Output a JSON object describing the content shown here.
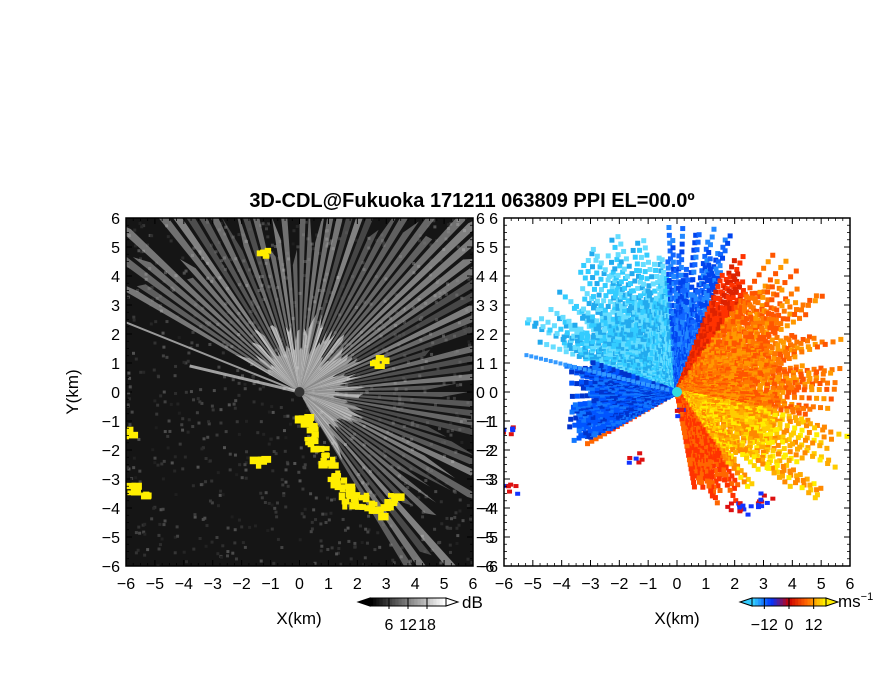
{
  "chart_data": [
    {
      "type": "heatmap",
      "panel": "reflectivity",
      "title": "3D-CDL@Fukuoka 171211 063809 PPI EL=00.0º",
      "xlabel": "X(km)",
      "ylabel": "Y(km)",
      "xlim": [
        -6,
        6
      ],
      "ylim": [
        -6,
        6
      ],
      "xticks": [
        "-6",
        "-5",
        "-4",
        "-3",
        "-2",
        "-1",
        "0",
        "1",
        "2",
        "3",
        "4",
        "5",
        "6"
      ],
      "yticks": [
        "6",
        "5",
        "4",
        "3",
        "2",
        "1",
        "0",
        "-1",
        "-2",
        "-3",
        "-4",
        "-5",
        "-6"
      ],
      "colorbar": {
        "unit": "dB",
        "tick_labels": [
          "6",
          "12",
          "18"
        ],
        "tick_values": [
          6,
          12,
          18
        ],
        "range": [
          0,
          24
        ],
        "colors": [
          "#000000",
          "#ffffff"
        ]
      },
      "overlay_color": "#ffee00"
    },
    {
      "type": "heatmap",
      "panel": "doppler_velocity",
      "xlabel": "X(km)",
      "xlim": [
        -6,
        6
      ],
      "ylim": [
        -6,
        6
      ],
      "xticks": [
        "-6",
        "-5",
        "-4",
        "-3",
        "-2",
        "-1",
        "0",
        "1",
        "2",
        "3",
        "4",
        "5",
        "6"
      ],
      "yticks": [
        "6",
        "5",
        "4",
        "3",
        "2",
        "1",
        "0",
        "-1",
        "-2",
        "-3",
        "-4",
        "-5",
        "-6"
      ],
      "colorbar": {
        "unit": "ms",
        "unit_exponent": "−1",
        "tick_labels": [
          "−12",
          "0",
          "12"
        ],
        "tick_values": [
          -12,
          0,
          12
        ],
        "range": [
          -18,
          18
        ],
        "colors": [
          "#33ccff",
          "#0033ff",
          "#cc0000",
          "#ff6600",
          "#ffee00"
        ]
      }
    }
  ]
}
